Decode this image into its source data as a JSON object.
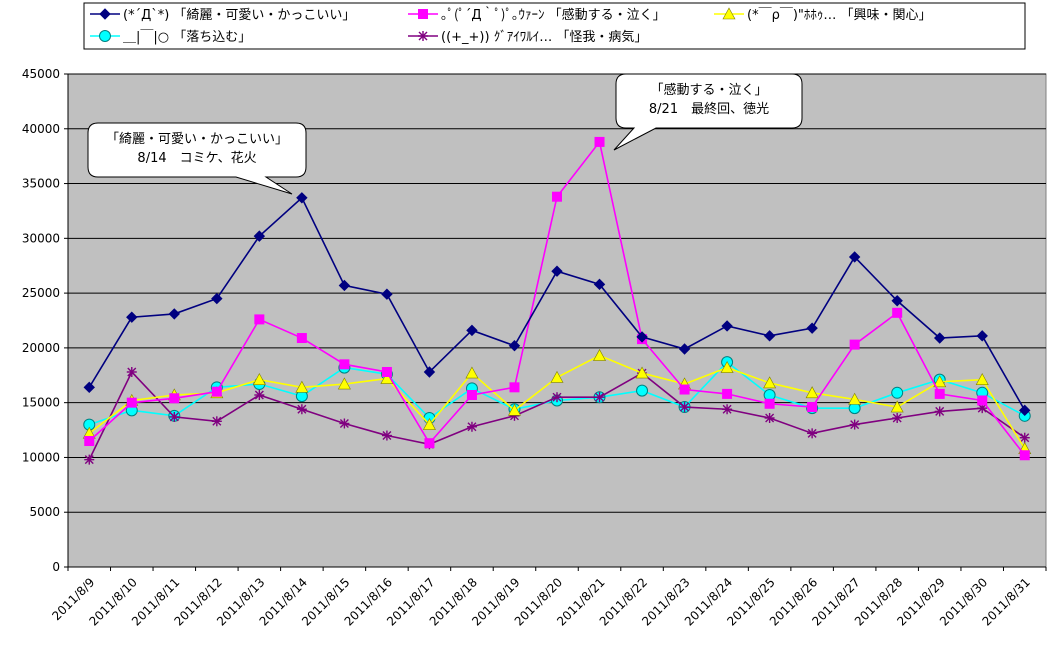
{
  "chart_data": {
    "type": "line",
    "categories": [
      "2011/8/9",
      "2011/8/10",
      "2011/8/11",
      "2011/8/12",
      "2011/8/13",
      "2011/8/14",
      "2011/8/15",
      "2011/8/16",
      "2011/8/17",
      "2011/8/18",
      "2011/8/19",
      "2011/8/20",
      "2011/8/21",
      "2011/8/22",
      "2011/8/23",
      "2011/8/24",
      "2011/8/25",
      "2011/8/26",
      "2011/8/27",
      "2011/8/28",
      "2011/8/29",
      "2011/8/30",
      "2011/8/31"
    ],
    "ylim": [
      0,
      45000
    ],
    "yticks": [
      "0",
      "5000",
      "10000",
      "15000",
      "20000",
      "25000",
      "30000",
      "35000",
      "40000",
      "45000"
    ],
    "grid": true,
    "plot_background": "#c0c0c0",
    "legend_position": "top",
    "series": [
      {
        "name": "(*´Д`*) 「綺麗・可愛い・かっこいい」",
        "color": "#000080",
        "marker": "diamond",
        "values": [
          16400,
          22800,
          23100,
          24500,
          30200,
          33700,
          25700,
          24900,
          17800,
          21600,
          20200,
          27000,
          25800,
          21000,
          19900,
          22000,
          21100,
          21800,
          28300,
          24300,
          20900,
          21100,
          14300
        ]
      },
      {
        "name": "｡ﾟ(ﾟ´Д｀ﾟ)ﾟ｡ｳｧｰﾝ 「感動する・泣く」",
        "color": "#ff00ff",
        "marker": "square",
        "values": [
          11500,
          15000,
          15400,
          16000,
          22600,
          20900,
          18500,
          17800,
          11300,
          15700,
          16400,
          33800,
          38800,
          20800,
          16200,
          15800,
          14900,
          14600,
          20300,
          23200,
          15800,
          15200,
          10200
        ]
      },
      {
        "name": "(*￣ρ￣)\"ﾎﾎｩ… 「興味・関心」",
        "color": "#ffff00",
        "marker": "triangle",
        "values": [
          12200,
          15200,
          15700,
          15900,
          17100,
          16400,
          16700,
          17200,
          13000,
          17700,
          14300,
          17300,
          19300,
          17700,
          16700,
          18200,
          16800,
          15900,
          15300,
          14600,
          16900,
          17100,
          10800
        ]
      },
      {
        "name": "＿|￣|○ 「落ち込む」",
        "color": "#00ffff",
        "marker": "circle",
        "values": [
          13000,
          14300,
          13800,
          16400,
          16700,
          15600,
          18200,
          17600,
          13600,
          16300,
          14400,
          15200,
          15500,
          16100,
          14600,
          18700,
          15700,
          14500,
          14500,
          15900,
          17100,
          15900,
          13800
        ]
      },
      {
        "name": "((+_+)) ｸﾞｱｲﾜﾙｲ… 「怪我・病気」",
        "color": "#800080",
        "marker": "star",
        "values": [
          9800,
          17800,
          13700,
          13300,
          15700,
          14400,
          13100,
          12000,
          11200,
          12800,
          13800,
          15500,
          15500,
          17700,
          14600,
          14400,
          13600,
          12200,
          13000,
          13600,
          14200,
          14500,
          11800
        ]
      }
    ],
    "annotations": [
      {
        "lines": [
          "「綺麗・可愛い・かっこいい」",
          "8/14　コミケ、花火"
        ],
        "series": 0,
        "point": 5
      },
      {
        "lines": [
          "「感動する・泣く」",
          "8/21　最終回、徳光"
        ],
        "series": 1,
        "point": 12
      }
    ]
  }
}
